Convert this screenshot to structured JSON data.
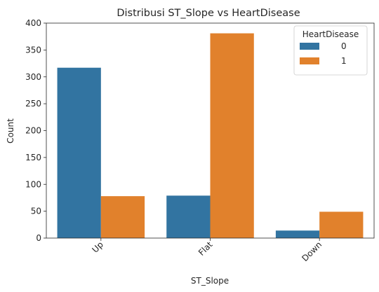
{
  "chart_data": {
    "type": "bar",
    "title": "Distribusi ST_Slope vs HeartDisease",
    "xlabel": "ST_Slope",
    "ylabel": "Count",
    "categories": [
      "Up",
      "Flat",
      "Down"
    ],
    "series": [
      {
        "name": "0",
        "values": [
          317,
          79,
          14
        ],
        "color": "#3274a1"
      },
      {
        "name": "1",
        "values": [
          78,
          381,
          49
        ],
        "color": "#e1812c"
      }
    ],
    "ylim": [
      0,
      400
    ],
    "yticks": [
      0,
      50,
      100,
      150,
      200,
      250,
      300,
      350,
      400
    ],
    "legend": {
      "title": "HeartDisease",
      "placement": "top-right"
    },
    "grid": false,
    "xtick_rotation": 45
  }
}
